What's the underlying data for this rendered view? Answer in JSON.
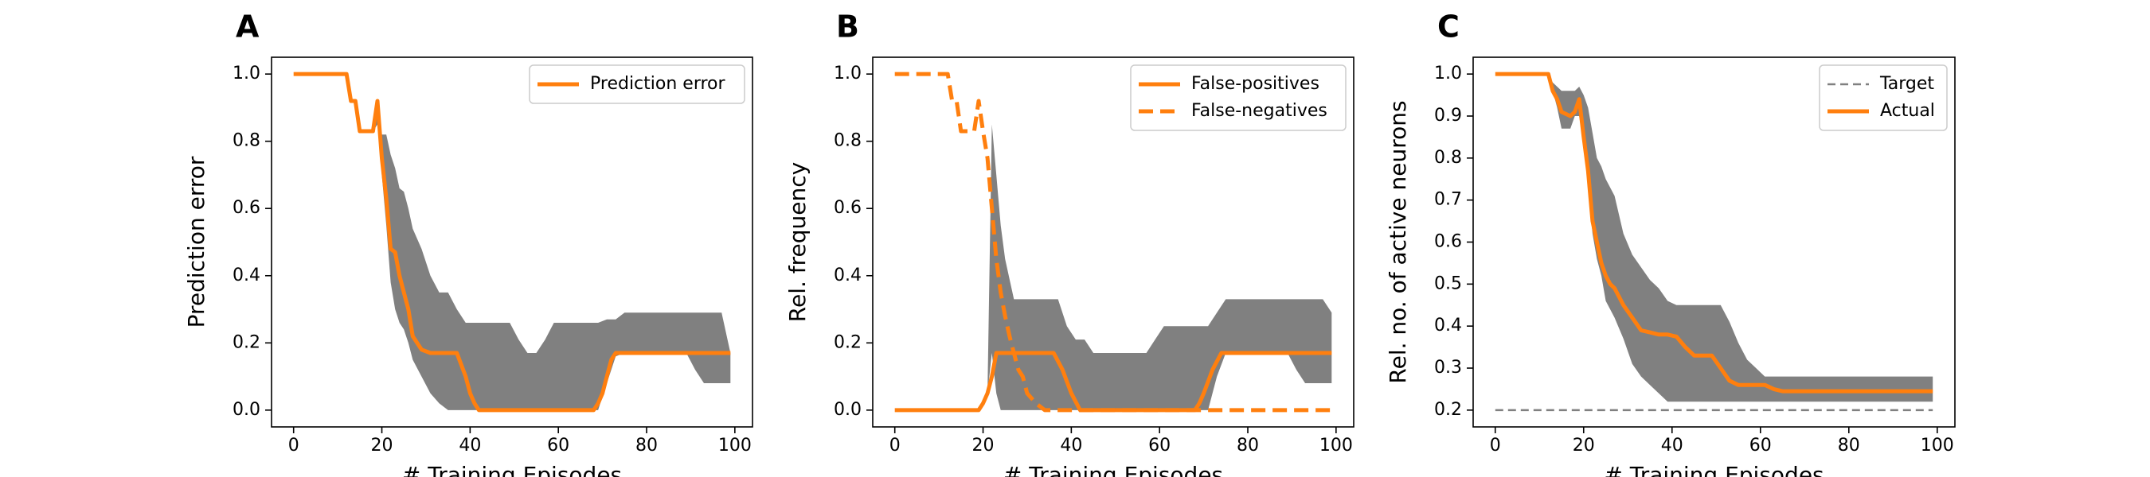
{
  "chart_data": [
    {
      "panel": "A",
      "type": "line",
      "xlabel": "# Training Episodes",
      "ylabel": "Prediction error",
      "xlim": [
        -5,
        104
      ],
      "ylim": [
        -0.05,
        1.05
      ],
      "xticks": [
        0,
        20,
        40,
        60,
        80,
        100
      ],
      "yticks": [
        0.0,
        0.2,
        0.4,
        0.6,
        0.8,
        1.0
      ],
      "grid": false,
      "legend_position": "top-right",
      "band": {
        "x": [
          0,
          12,
          13,
          14,
          15,
          17,
          18,
          19,
          20,
          21,
          22,
          23,
          24,
          25,
          26,
          27,
          29,
          31,
          33,
          35,
          37,
          39,
          41,
          43,
          45,
          47,
          49,
          51,
          53,
          55,
          57,
          59,
          61,
          63,
          65,
          67,
          69,
          71,
          73,
          75,
          77,
          79,
          81,
          83,
          85,
          87,
          89,
          91,
          93,
          95,
          97,
          99
        ],
        "lower": [
          1.0,
          1.0,
          0.92,
          0.92,
          0.83,
          0.83,
          0.83,
          0.85,
          0.7,
          0.55,
          0.38,
          0.3,
          0.26,
          0.24,
          0.2,
          0.15,
          0.1,
          0.05,
          0.02,
          0.0,
          0.0,
          0.0,
          0.0,
          0.0,
          0.0,
          0.0,
          0.0,
          0.0,
          0.0,
          0.0,
          0.0,
          0.0,
          0.0,
          0.0,
          0.0,
          0.0,
          0.0,
          0.08,
          0.16,
          0.17,
          0.17,
          0.17,
          0.17,
          0.17,
          0.17,
          0.17,
          0.17,
          0.12,
          0.08,
          0.08,
          0.08,
          0.08
        ],
        "upper": [
          1.0,
          1.0,
          0.92,
          0.92,
          0.83,
          0.83,
          0.83,
          0.92,
          0.82,
          0.82,
          0.76,
          0.72,
          0.66,
          0.65,
          0.6,
          0.54,
          0.48,
          0.4,
          0.35,
          0.35,
          0.3,
          0.26,
          0.26,
          0.26,
          0.26,
          0.26,
          0.26,
          0.21,
          0.17,
          0.17,
          0.21,
          0.26,
          0.26,
          0.26,
          0.26,
          0.26,
          0.26,
          0.27,
          0.27,
          0.29,
          0.29,
          0.29,
          0.29,
          0.29,
          0.29,
          0.29,
          0.29,
          0.29,
          0.29,
          0.29,
          0.29,
          0.17
        ]
      },
      "series": [
        {
          "name": "Prediction error",
          "style": "solid",
          "x": [
            0,
            12,
            13,
            14,
            15,
            17,
            18,
            19,
            20,
            21,
            22,
            23,
            24,
            25,
            26,
            27,
            29,
            31,
            33,
            35,
            37,
            39,
            40,
            41,
            42,
            44,
            68,
            69,
            70,
            71,
            72,
            73,
            75,
            77,
            99
          ],
          "y": [
            1.0,
            1.0,
            0.92,
            0.92,
            0.83,
            0.83,
            0.83,
            0.92,
            0.75,
            0.63,
            0.48,
            0.47,
            0.4,
            0.35,
            0.3,
            0.22,
            0.18,
            0.17,
            0.17,
            0.17,
            0.17,
            0.1,
            0.05,
            0.02,
            0.0,
            0.0,
            0.0,
            0.02,
            0.05,
            0.1,
            0.15,
            0.17,
            0.17,
            0.17,
            0.17
          ]
        }
      ]
    },
    {
      "panel": "B",
      "type": "line",
      "xlabel": "# Training Episodes",
      "ylabel": "Rel. frequency",
      "xlim": [
        -5,
        104
      ],
      "ylim": [
        -0.05,
        1.05
      ],
      "xticks": [
        0,
        20,
        40,
        60,
        80,
        100
      ],
      "yticks": [
        0.0,
        0.2,
        0.4,
        0.6,
        0.8,
        1.0
      ],
      "grid": false,
      "legend_position": "top-right",
      "band": {
        "x": [
          0,
          12,
          13,
          14,
          15,
          17,
          18,
          19,
          20,
          21,
          22,
          23,
          24,
          25,
          27,
          29,
          31,
          33,
          35,
          37,
          39,
          41,
          43,
          45,
          47,
          49,
          51,
          53,
          55,
          57,
          59,
          61,
          63,
          65,
          67,
          69,
          71,
          73,
          75,
          77,
          79,
          81,
          83,
          85,
          87,
          89,
          91,
          93,
          95,
          97,
          99
        ],
        "lower": [
          0.0,
          0.0,
          0.0,
          0.0,
          0.0,
          0.0,
          0.0,
          0.0,
          0.0,
          0.05,
          0.17,
          0.05,
          0.0,
          0.0,
          0.0,
          0.0,
          0.0,
          0.0,
          0.0,
          0.0,
          0.0,
          0.0,
          0.0,
          0.0,
          0.0,
          0.0,
          0.0,
          0.0,
          0.0,
          0.0,
          0.0,
          0.0,
          0.0,
          0.0,
          0.0,
          0.0,
          0.0,
          0.1,
          0.17,
          0.17,
          0.17,
          0.17,
          0.17,
          0.17,
          0.17,
          0.17,
          0.12,
          0.08,
          0.08,
          0.08,
          0.08
        ],
        "upper": [
          0.0,
          0.0,
          0.0,
          0.0,
          0.0,
          0.0,
          0.0,
          0.0,
          0.0,
          0.05,
          0.85,
          0.7,
          0.55,
          0.45,
          0.33,
          0.33,
          0.33,
          0.33,
          0.33,
          0.33,
          0.25,
          0.21,
          0.21,
          0.17,
          0.17,
          0.17,
          0.17,
          0.17,
          0.17,
          0.17,
          0.21,
          0.25,
          0.25,
          0.25,
          0.25,
          0.25,
          0.25,
          0.29,
          0.33,
          0.33,
          0.33,
          0.33,
          0.33,
          0.33,
          0.33,
          0.33,
          0.33,
          0.33,
          0.33,
          0.33,
          0.29
        ]
      },
      "series": [
        {
          "name": "False-positives",
          "style": "solid",
          "x": [
            0,
            19,
            20,
            21,
            22,
            23,
            24,
            35,
            36,
            38,
            40,
            42,
            68,
            69,
            70,
            72,
            74,
            75,
            99
          ],
          "y": [
            0.0,
            0.0,
            0.02,
            0.05,
            0.1,
            0.17,
            0.17,
            0.17,
            0.17,
            0.12,
            0.05,
            0.0,
            0.0,
            0.02,
            0.05,
            0.12,
            0.17,
            0.17,
            0.17
          ]
        },
        {
          "name": "False-negatives",
          "style": "dashed",
          "x": [
            0,
            12,
            13,
            14,
            15,
            17,
            18,
            19,
            20,
            21,
            22,
            23,
            24,
            25,
            26,
            27,
            28,
            29,
            30,
            32,
            34,
            36,
            38,
            99
          ],
          "y": [
            1.0,
            1.0,
            0.92,
            0.92,
            0.83,
            0.83,
            0.83,
            0.92,
            0.83,
            0.75,
            0.6,
            0.45,
            0.35,
            0.28,
            0.22,
            0.17,
            0.12,
            0.1,
            0.05,
            0.02,
            0.0,
            0.0,
            0.0,
            0.0
          ]
        }
      ]
    },
    {
      "panel": "C",
      "type": "line",
      "xlabel": "# Training Episodes",
      "ylabel": "Rel. no. of active neurons",
      "xlim": [
        -5,
        104
      ],
      "ylim": [
        0.16,
        1.04
      ],
      "xticks": [
        0,
        20,
        40,
        60,
        80,
        100
      ],
      "yticks": [
        0.2,
        0.3,
        0.4,
        0.5,
        0.6,
        0.7,
        0.8,
        0.9,
        1.0
      ],
      "grid": false,
      "legend_position": "top-right",
      "band": {
        "x": [
          0,
          12,
          13,
          14,
          15,
          17,
          18,
          19,
          20,
          21,
          22,
          23,
          24,
          25,
          27,
          29,
          31,
          33,
          35,
          37,
          39,
          41,
          43,
          45,
          47,
          49,
          51,
          53,
          55,
          57,
          59,
          61,
          63,
          65,
          67,
          69,
          99
        ],
        "lower": [
          1.0,
          1.0,
          0.96,
          0.92,
          0.87,
          0.87,
          0.9,
          0.9,
          0.83,
          0.73,
          0.62,
          0.56,
          0.52,
          0.46,
          0.42,
          0.37,
          0.31,
          0.28,
          0.26,
          0.24,
          0.22,
          0.22,
          0.22,
          0.22,
          0.22,
          0.22,
          0.22,
          0.22,
          0.22,
          0.22,
          0.22,
          0.22,
          0.22,
          0.22,
          0.22,
          0.22,
          0.22
        ],
        "upper": [
          1.0,
          1.0,
          0.98,
          0.97,
          0.96,
          0.96,
          0.96,
          0.97,
          0.95,
          0.92,
          0.86,
          0.8,
          0.78,
          0.75,
          0.71,
          0.62,
          0.57,
          0.54,
          0.51,
          0.49,
          0.46,
          0.45,
          0.45,
          0.45,
          0.45,
          0.45,
          0.45,
          0.41,
          0.36,
          0.32,
          0.3,
          0.28,
          0.28,
          0.28,
          0.28,
          0.28,
          0.28
        ]
      },
      "series": [
        {
          "name": "Target",
          "style": "dashed",
          "x": [
            0,
            99
          ],
          "y": [
            0.2,
            0.2
          ]
        },
        {
          "name": "Actual",
          "style": "solid",
          "x": [
            0,
            12,
            13,
            14,
            15,
            17,
            18,
            19,
            20,
            21,
            22,
            23,
            24,
            25,
            26,
            27,
            29,
            31,
            33,
            35,
            37,
            39,
            41,
            43,
            45,
            47,
            49,
            51,
            53,
            55,
            57,
            59,
            61,
            63,
            65,
            99
          ],
          "y": [
            1.0,
            1.0,
            0.96,
            0.94,
            0.91,
            0.9,
            0.91,
            0.94,
            0.85,
            0.77,
            0.65,
            0.6,
            0.55,
            0.52,
            0.5,
            0.49,
            0.45,
            0.42,
            0.39,
            0.385,
            0.38,
            0.38,
            0.375,
            0.35,
            0.33,
            0.33,
            0.33,
            0.3,
            0.27,
            0.26,
            0.26,
            0.26,
            0.26,
            0.25,
            0.245,
            0.245
          ]
        }
      ]
    }
  ],
  "colors": {
    "line": "#ff7f0e",
    "band": "#808080",
    "target": "#808080",
    "axis": "#000000"
  }
}
